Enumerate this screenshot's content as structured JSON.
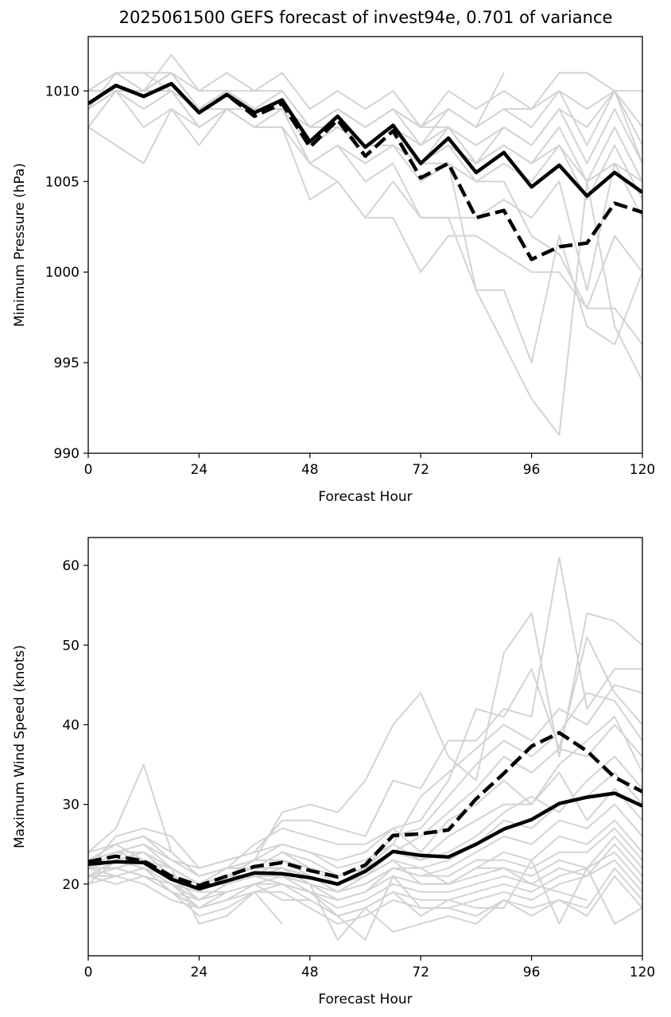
{
  "title": "2025061500 GEFS forecast of invest94e, 0.701 of variance",
  "colors": {
    "members": "#d3d3d3",
    "mean": "#000000",
    "frame": "#000000"
  },
  "chart_data": [
    {
      "type": "line",
      "xlabel": "Forecast Hour",
      "ylabel": "Minimum Pressure (hPa)",
      "xlim": [
        0,
        120
      ],
      "ylim": [
        990,
        1013
      ],
      "xticks": [
        0,
        24,
        48,
        72,
        96,
        120
      ],
      "yticks": [
        990,
        995,
        1000,
        1005,
        1010
      ],
      "x": [
        0,
        6,
        12,
        18,
        24,
        30,
        36,
        42,
        48,
        54,
        60,
        66,
        72,
        78,
        84,
        90,
        96,
        102,
        108,
        114,
        120
      ],
      "series": [
        {
          "style": "solid",
          "values": [
            1009.3,
            1010.3,
            1009.7,
            1010.4,
            1008.8,
            1009.8,
            1008.8,
            1009.5,
            1007.2,
            1008.6,
            1006.9,
            1008.1,
            1006.0,
            1007.4,
            1005.5,
            1006.6,
            1004.7,
            1005.9,
            1004.2,
            1005.5,
            1004.4
          ]
        },
        {
          "style": "dashed",
          "values": [
            1009.3,
            1010.3,
            1009.7,
            1010.4,
            1008.8,
            1009.8,
            1008.6,
            1009.3,
            1006.9,
            1008.4,
            1006.4,
            1007.8,
            1005.2,
            1006.0,
            1003.0,
            1003.4,
            1000.7,
            1001.4,
            1001.6,
            1003.8,
            1003.3
          ]
        }
      ],
      "members": [
        [
          1010,
          1011,
          1011,
          1011,
          1010,
          1011,
          1010,
          1011,
          1009,
          1010,
          1009,
          1010,
          1008,
          1010,
          1009,
          1010,
          1009,
          1010,
          1009,
          1010,
          1010
        ],
        [
          1009,
          1010,
          1010,
          1012,
          1010,
          1010,
          1010,
          1010,
          1008,
          1009,
          1008,
          1009,
          1008,
          1009,
          1008,
          1009,
          1009,
          1011,
          1011,
          1010,
          1008
        ],
        [
          1009,
          1011,
          1011,
          1010,
          1009,
          1010,
          1009,
          1010,
          1008,
          1009,
          1008,
          1009,
          1007,
          1009,
          1008,
          1009,
          1008,
          1010,
          1007,
          1010,
          1007
        ],
        [
          1008,
          1010,
          1010,
          1010,
          1009,
          1010,
          1009,
          1009,
          1007,
          1008,
          1007,
          1008,
          1006,
          1008,
          1006,
          1008,
          1007,
          1009,
          1006,
          1009,
          1006
        ],
        [
          1009,
          1010,
          1009,
          1010,
          1009,
          1009,
          1008,
          1009,
          1007,
          1008,
          1007,
          1008,
          1006,
          1007,
          1006,
          1007,
          1006,
          1008,
          1005,
          1008,
          1005
        ],
        [
          1008,
          1010,
          1008,
          1009,
          1008,
          1009,
          1008,
          1009,
          1006,
          1007,
          1006,
          1007,
          1005,
          1006,
          1005,
          1006,
          1005,
          1007,
          1004,
          1007,
          1004
        ],
        [
          1009,
          1010,
          1009,
          1010,
          1008,
          1009,
          1008,
          1008,
          1004,
          1005,
          1003,
          1005,
          1003,
          1003,
          1003,
          1004,
          1003,
          1005,
          999,
          1006,
          1003
        ],
        [
          1009,
          1010,
          1010,
          1010,
          1008,
          1009,
          1009,
          1009,
          1006,
          1005,
          1003,
          1003,
          1000,
          1002,
          1002,
          1001,
          1000,
          1000,
          998,
          1002,
          1000
        ],
        [
          1008,
          1007,
          1006,
          1009,
          1007,
          1009,
          1008,
          1008,
          1006,
          1007,
          1005,
          1006,
          1003,
          1003,
          999,
          999,
          995,
          1002,
          997,
          996,
          1000
        ],
        [
          1010,
          1011,
          1010,
          1011,
          1009,
          1010,
          1009,
          1009,
          1007,
          1008,
          1007,
          1008,
          1006,
          1007,
          1005,
          1005,
          1002,
          1001,
          998,
          998,
          996
        ],
        [
          1010,
          1010,
          1010,
          1011,
          1009,
          1010,
          1009,
          1009,
          1007,
          1008,
          1007,
          1007,
          1006,
          1006,
          999,
          996,
          993,
          991,
          1005,
          997,
          994
        ],
        [
          1010,
          1011,
          1010,
          1010,
          1009,
          1010,
          1009,
          1009,
          1008,
          1008,
          1007,
          1008,
          1007,
          1008,
          1006,
          1007,
          1006,
          1007,
          1005,
          1006,
          1005
        ],
        [
          1009,
          1010,
          1010,
          1011,
          1009,
          1010,
          1009,
          1010,
          1008,
          1009,
          1008,
          1009,
          1008,
          1008,
          1007,
          1008,
          1007,
          1009,
          1008,
          1010,
          1006
        ],
        [
          1010,
          1010,
          1009,
          1010,
          1009,
          1010,
          1009,
          1009,
          1008,
          1009,
          1008,
          1009,
          1008,
          1009,
          1008,
          1011,
          null,
          null,
          null,
          null,
          null
        ]
      ]
    },
    {
      "type": "line",
      "xlabel": "Forecast Hour",
      "ylabel": "Maximum Wind Speed (knots)",
      "xlim": [
        0,
        120
      ],
      "ylim": [
        11,
        63.5
      ],
      "xticks": [
        0,
        24,
        48,
        72,
        96,
        120
      ],
      "yticks": [
        20,
        30,
        40,
        50,
        60
      ],
      "x": [
        0,
        6,
        12,
        18,
        24,
        30,
        36,
        42,
        48,
        54,
        60,
        66,
        72,
        78,
        84,
        90,
        96,
        102,
        108,
        114,
        120
      ],
      "series": [
        {
          "style": "solid",
          "values": [
            22.5,
            22.8,
            22.7,
            20.6,
            19.4,
            20.4,
            21.4,
            21.3,
            20.8,
            20.0,
            21.6,
            24.1,
            23.6,
            23.4,
            25.0,
            26.9,
            28.1,
            30.1,
            30.9,
            31.4,
            29.8
          ]
        },
        {
          "style": "dashed",
          "values": [
            22.8,
            23.5,
            22.9,
            21.0,
            19.8,
            21.0,
            22.2,
            22.7,
            21.7,
            20.9,
            22.4,
            26.1,
            26.3,
            26.8,
            30.7,
            33.9,
            37.3,
            39.0,
            36.7,
            33.4,
            31.6
          ]
        }
      ],
      "members": [
        [
          24,
          27,
          35,
          24,
          21,
          22,
          23,
          29,
          30,
          29,
          33,
          40,
          44,
          36,
          33,
          49,
          54,
          36,
          54,
          53,
          50
        ],
        [
          22,
          26,
          27,
          26,
          22,
          23,
          24,
          28,
          28,
          27,
          26,
          33,
          32,
          38,
          38,
          42,
          41,
          61,
          42,
          47,
          47
        ],
        [
          23,
          25,
          26,
          24,
          21,
          22,
          25,
          27,
          26,
          25,
          25,
          27,
          28,
          33,
          42,
          41,
          47,
          37,
          51,
          44,
          40
        ],
        [
          21,
          22,
          23,
          22,
          20,
          21,
          23,
          25,
          24,
          22,
          23,
          25,
          31,
          34,
          37,
          40,
          38,
          42,
          40,
          45,
          44
        ],
        [
          22,
          24,
          25,
          23,
          21,
          22,
          22,
          24,
          23,
          21,
          22,
          26,
          27,
          31,
          35,
          38,
          36,
          39,
          44,
          43,
          38
        ],
        [
          20,
          23,
          24,
          22,
          20,
          20,
          21,
          23,
          22,
          20,
          21,
          24,
          26,
          29,
          32,
          36,
          34,
          37,
          36,
          40,
          36
        ],
        [
          23,
          25,
          26,
          23,
          22,
          23,
          24,
          25,
          24,
          23,
          24,
          27,
          24,
          28,
          30,
          33,
          30,
          35,
          38,
          41,
          34
        ],
        [
          21,
          23,
          22,
          21,
          19,
          21,
          22,
          22,
          21,
          20,
          22,
          25,
          23,
          24,
          26,
          29,
          31,
          29,
          33,
          36,
          32
        ],
        [
          22,
          22,
          23,
          21,
          18,
          20,
          21,
          22,
          21,
          19,
          20,
          22,
          22,
          23,
          25,
          28,
          27,
          30,
          31,
          34,
          30
        ],
        [
          23,
          24,
          24,
          22,
          20,
          22,
          22,
          24,
          22,
          21,
          22,
          24,
          23,
          26,
          28,
          30,
          30,
          34,
          28,
          32,
          28
        ],
        [
          21,
          21,
          22,
          20,
          19,
          19,
          20,
          21,
          20,
          18,
          19,
          22,
          21,
          22,
          24,
          26,
          25,
          28,
          27,
          30,
          26
        ],
        [
          24,
          25,
          23,
          22,
          20,
          22,
          23,
          23,
          21,
          20,
          21,
          23,
          20,
          20,
          22,
          24,
          23,
          26,
          25,
          28,
          24
        ],
        [
          22,
          23,
          24,
          21,
          20,
          21,
          22,
          22,
          20,
          19,
          20,
          22,
          21,
          21,
          23,
          23,
          22,
          24,
          24,
          27,
          23
        ],
        [
          21,
          22,
          21,
          20,
          18,
          20,
          21,
          20,
          19,
          18,
          19,
          21,
          20,
          20,
          21,
          22,
          21,
          23,
          22,
          26,
          22
        ],
        [
          20,
          21,
          22,
          19,
          17,
          19,
          20,
          21,
          19,
          17,
          18,
          20,
          19,
          19,
          20,
          21,
          20,
          22,
          21,
          25,
          21
        ],
        [
          22,
          22,
          21,
          20,
          17,
          18,
          19,
          20,
          18,
          16,
          17,
          19,
          18,
          18,
          19,
          20,
          19,
          21,
          22,
          24,
          20
        ],
        [
          21,
          20,
          21,
          19,
          16,
          17,
          19,
          19,
          17,
          15,
          16,
          18,
          17,
          17,
          18,
          19,
          18,
          20,
          21,
          23,
          19
        ],
        [
          22,
          21,
          20,
          18,
          17,
          18,
          20,
          18,
          18,
          16,
          13,
          21,
          17,
          17,
          16,
          18,
          17,
          18,
          17,
          22,
          18
        ],
        [
          21,
          22,
          21,
          19,
          18,
          19,
          20,
          20,
          19,
          16,
          17,
          14,
          15,
          16,
          15,
          18,
          16,
          18,
          16,
          21,
          17
        ],
        [
          23,
          24,
          23,
          21,
          19,
          21,
          21,
          21,
          20,
          13,
          17,
          19,
          16,
          18,
          17,
          17,
          23,
          15,
          22,
          15,
          17
        ],
        [
          22,
          24,
          25,
          22,
          15,
          16,
          19,
          15,
          null,
          null,
          null,
          null,
          null,
          null,
          null,
          null,
          null,
          null,
          null,
          null,
          null
        ],
        [
          22,
          23,
          22,
          21,
          20,
          21,
          21,
          22,
          20,
          19,
          21,
          23,
          22,
          20,
          22,
          22,
          20,
          19,
          18,
          null,
          null
        ]
      ]
    }
  ]
}
